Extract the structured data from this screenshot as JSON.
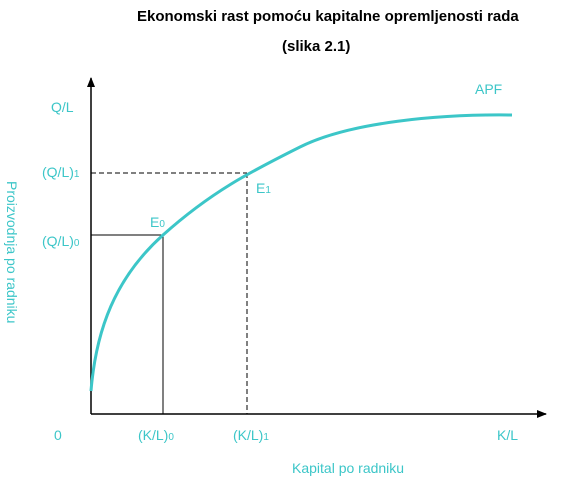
{
  "title": "Ekonomski rast pomoću kapitalne opremljenosti rada",
  "subtitle": "(slika 2.1)",
  "colors": {
    "curve": "#3cc6c8",
    "labels": "#3cc6c8",
    "axes": "#000000"
  },
  "axes": {
    "origin_label": "0",
    "x_axis_label": "Kapital po radniku",
    "y_axis_label": "Proizvodnja po radniku",
    "x_end_label": "K/L",
    "y_end_label": "Q/L"
  },
  "curve": {
    "label": "APF"
  },
  "points": [
    {
      "name": "E",
      "sub": "0",
      "x_base": "(K/L)",
      "x_sub": "0",
      "y_base": "(Q/L)",
      "y_sub": "0",
      "guide_style": "solid"
    },
    {
      "name": "E",
      "sub": "1",
      "x_base": "(K/L)",
      "x_sub": "1",
      "y_base": "(Q/L)",
      "y_sub": "1",
      "guide_style": "dashed"
    }
  ]
}
